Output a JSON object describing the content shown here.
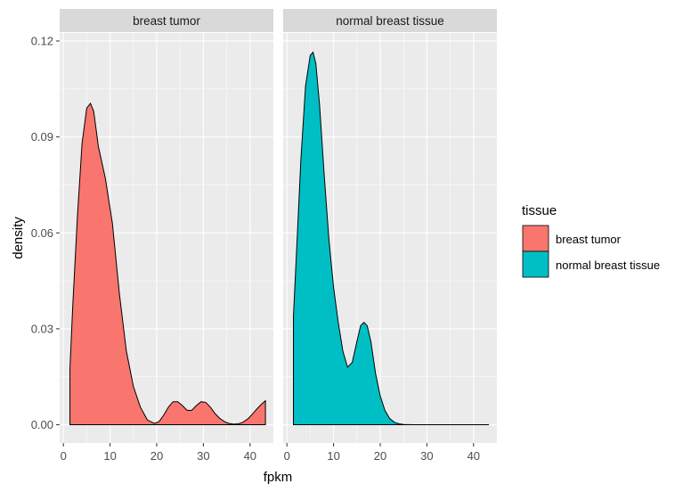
{
  "chart_data": {
    "type": "area",
    "xlabel": "fpkm",
    "ylabel": "density",
    "xlim": [
      -0.8,
      45
    ],
    "ylim": [
      -0.0057,
      0.1225
    ],
    "x_ticks": [
      0,
      10,
      20,
      30,
      40
    ],
    "y_ticks": [
      0.0,
      0.03,
      0.06,
      0.09,
      0.12
    ],
    "y_tick_labels": [
      "0.00",
      "0.03",
      "0.06",
      "0.09",
      "0.12"
    ],
    "x_tick_labels": [
      "0",
      "10",
      "20",
      "30",
      "40"
    ],
    "grid": true,
    "legend": {
      "title": "tissue",
      "position": "right",
      "entries": [
        {
          "label": "breast tumor",
          "color": "#F8766D"
        },
        {
          "label": "normal breast tissue",
          "color": "#00BFC4"
        }
      ]
    },
    "panels": [
      {
        "strip": "breast tumor",
        "color": "#F8766D",
        "x": [
          1.4,
          2,
          3,
          4,
          5,
          5.8,
          6.5,
          7.5,
          9,
          10.5,
          12,
          13.5,
          15,
          16.5,
          18,
          19.5,
          20.5,
          21.5,
          22.5,
          23.5,
          24.5,
          25.5,
          26.5,
          27.5,
          28.5,
          29.5,
          30.5,
          31.5,
          32.5,
          33.5,
          34.5,
          35.5,
          36.5,
          37.5,
          38.5,
          39.5,
          40.5,
          41.5,
          42.5,
          43.3
        ],
        "y": [
          0.0175,
          0.037,
          0.065,
          0.088,
          0.099,
          0.1005,
          0.098,
          0.087,
          0.077,
          0.063,
          0.041,
          0.023,
          0.012,
          0.0055,
          0.0015,
          0.0004,
          0.001,
          0.003,
          0.0055,
          0.0072,
          0.0072,
          0.006,
          0.0045,
          0.0045,
          0.006,
          0.0072,
          0.007,
          0.0055,
          0.0035,
          0.002,
          0.001,
          0.0004,
          0.0002,
          0.0003,
          0.0008,
          0.0018,
          0.0033,
          0.005,
          0.0065,
          0.0075
        ]
      },
      {
        "strip": "normal breast tissue",
        "color": "#00BFC4",
        "x": [
          1.4,
          2,
          3,
          4,
          5,
          5.6,
          6.2,
          7,
          8,
          9,
          10,
          11,
          12,
          13,
          14,
          15,
          15.8,
          16.5,
          17.2,
          18,
          19,
          20,
          21,
          22,
          23,
          24,
          25,
          27,
          30,
          35,
          40,
          43.3
        ],
        "y": [
          0.034,
          0.052,
          0.083,
          0.106,
          0.1155,
          0.1165,
          0.113,
          0.1,
          0.078,
          0.058,
          0.043,
          0.032,
          0.023,
          0.018,
          0.0195,
          0.026,
          0.031,
          0.032,
          0.031,
          0.026,
          0.016,
          0.009,
          0.0045,
          0.002,
          0.0008,
          0.0003,
          0.0001,
          0.0,
          0.0,
          0.0,
          0.0,
          0.0
        ]
      }
    ]
  }
}
